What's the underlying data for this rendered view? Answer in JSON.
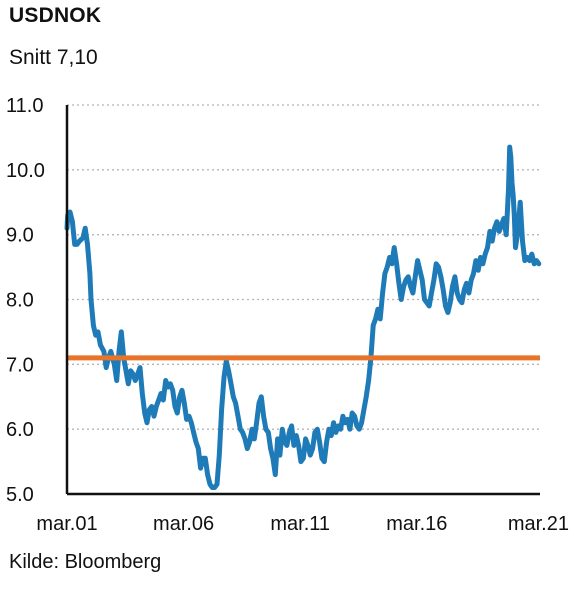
{
  "chart_data": {
    "type": "line",
    "title": "USDNOK",
    "subtitle": "Snitt 7,10",
    "source": "Kilde: Bloomberg",
    "xlabel": "",
    "ylabel": "",
    "x_ticks": [
      "mar.01",
      "mar.06",
      "mar.11",
      "mar.16",
      "mar.21"
    ],
    "x_tick_years": [
      2001.17,
      2006.17,
      2011.17,
      2016.17,
      2021.17
    ],
    "xlim": [
      2001.17,
      2021.45
    ],
    "y_ticks": [
      "5.0",
      "6.0",
      "7.0",
      "8.0",
      "9.0",
      "10.0",
      "11.0"
    ],
    "y_tick_values": [
      5,
      6,
      7,
      8,
      9,
      10,
      11
    ],
    "ylim": [
      5,
      11
    ],
    "grid": "horizontal dotted",
    "colors": {
      "series": "#1f7bb8",
      "average": "#e8742a",
      "grid": "#b5b5b5",
      "axis": "#111111"
    },
    "average": 7.1,
    "series": [
      {
        "x": [
          2001.17,
          2001.2,
          2001.3,
          2001.4,
          2001.5,
          2001.6,
          2001.7,
          2001.85,
          2001.95,
          2002.05,
          2002.15,
          2002.2,
          2002.3,
          2002.4,
          2002.5,
          2002.6,
          2002.75,
          2002.85,
          2002.95,
          2003.05,
          2003.2,
          2003.3,
          2003.4,
          2003.5,
          2003.6,
          2003.7,
          2003.8,
          2003.9,
          2004.0,
          2004.1,
          2004.2,
          2004.3,
          2004.4,
          2004.5,
          2004.6,
          2004.7,
          2004.8,
          2004.9,
          2005.0,
          2005.1,
          2005.2,
          2005.3,
          2005.4,
          2005.5,
          2005.6,
          2005.7,
          2005.8,
          2005.9,
          2006.0,
          2006.1,
          2006.2,
          2006.3,
          2006.4,
          2006.5,
          2006.6,
          2006.7,
          2006.8,
          2006.9,
          2007.0,
          2007.1,
          2007.2,
          2007.3,
          2007.4,
          2007.5,
          2007.6,
          2007.7,
          2007.8,
          2007.9,
          2008.0,
          2008.1,
          2008.2,
          2008.3,
          2008.4,
          2008.5,
          2008.6,
          2008.7,
          2008.8,
          2008.9,
          2009.0,
          2009.1,
          2009.2,
          2009.3,
          2009.4,
          2009.5,
          2009.6,
          2009.7,
          2009.8,
          2009.9,
          2010.0,
          2010.1,
          2010.2,
          2010.3,
          2010.4,
          2010.5,
          2010.6,
          2010.7,
          2010.8,
          2010.9,
          2011.0,
          2011.1,
          2011.2,
          2011.3,
          2011.4,
          2011.5,
          2011.6,
          2011.7,
          2011.8,
          2011.9,
          2012.0,
          2012.1,
          2012.2,
          2012.3,
          2012.4,
          2012.5,
          2012.6,
          2012.7,
          2012.8,
          2012.9,
          2013.0,
          2013.1,
          2013.2,
          2013.3,
          2013.4,
          2013.5,
          2013.6,
          2013.7,
          2013.8,
          2013.9,
          2014.0,
          2014.1,
          2014.2,
          2014.3,
          2014.4,
          2014.5,
          2014.6,
          2014.7,
          2014.8,
          2014.9,
          2015.0,
          2015.1,
          2015.2,
          2015.3,
          2015.4,
          2015.5,
          2015.6,
          2015.7,
          2015.8,
          2015.9,
          2016.0,
          2016.1,
          2016.2,
          2016.3,
          2016.4,
          2016.5,
          2016.6,
          2016.7,
          2016.8,
          2016.9,
          2017.0,
          2017.1,
          2017.2,
          2017.3,
          2017.4,
          2017.5,
          2017.6,
          2017.7,
          2017.8,
          2017.9,
          2018.0,
          2018.1,
          2018.2,
          2018.3,
          2018.4,
          2018.5,
          2018.6,
          2018.7,
          2018.8,
          2018.9,
          2019.0,
          2019.1,
          2019.2,
          2019.3,
          2019.4,
          2019.5,
          2019.6,
          2019.7,
          2019.8,
          2019.9,
          2020.0,
          2020.1,
          2020.15,
          2020.2,
          2020.25,
          2020.3,
          2020.35,
          2020.4,
          2020.5,
          2020.6,
          2020.7,
          2020.8,
          2020.9,
          2021.0,
          2021.1,
          2021.2,
          2021.3,
          2021.4
        ],
        "values": [
          9.1,
          9.3,
          9.35,
          9.2,
          8.85,
          8.85,
          8.9,
          8.95,
          9.1,
          8.85,
          8.4,
          8.0,
          7.6,
          7.45,
          7.5,
          7.3,
          7.2,
          6.95,
          7.1,
          7.2,
          7.0,
          6.75,
          7.2,
          7.5,
          7.1,
          6.9,
          6.7,
          6.9,
          6.85,
          6.75,
          6.85,
          6.95,
          6.55,
          6.25,
          6.1,
          6.3,
          6.35,
          6.2,
          6.35,
          6.45,
          6.55,
          6.45,
          6.75,
          6.65,
          6.7,
          6.6,
          6.35,
          6.25,
          6.5,
          6.6,
          6.4,
          6.15,
          6.2,
          6.1,
          5.95,
          5.8,
          5.7,
          5.4,
          5.55,
          5.55,
          5.3,
          5.15,
          5.1,
          5.1,
          5.15,
          5.6,
          6.3,
          6.8,
          7.05,
          6.9,
          6.7,
          6.5,
          6.4,
          6.2,
          6.0,
          5.95,
          5.85,
          5.7,
          5.8,
          6.0,
          5.85,
          6.1,
          6.4,
          6.5,
          6.2,
          6.0,
          5.95,
          5.7,
          5.55,
          5.3,
          5.85,
          5.6,
          6.0,
          5.8,
          5.75,
          5.95,
          6.05,
          5.75,
          5.9,
          5.75,
          5.5,
          5.55,
          5.85,
          5.75,
          5.6,
          5.7,
          5.95,
          6.0,
          5.8,
          5.55,
          5.5,
          5.8,
          6.0,
          5.9,
          6.1,
          5.95,
          6.05,
          6.0,
          6.2,
          6.1,
          6.15,
          6.0,
          6.25,
          6.2,
          6.05,
          6.0,
          6.1,
          6.3,
          6.5,
          6.75,
          7.1,
          7.6,
          7.7,
          7.85,
          7.7,
          8.1,
          8.4,
          8.5,
          8.65,
          8.55,
          8.8,
          8.55,
          8.25,
          8.0,
          8.2,
          8.3,
          8.35,
          8.2,
          8.1,
          8.35,
          8.6,
          8.45,
          8.3,
          8.0,
          7.95,
          7.9,
          8.1,
          8.3,
          8.55,
          8.5,
          8.35,
          8.15,
          7.9,
          7.8,
          7.95,
          8.2,
          8.35,
          8.1,
          8.0,
          7.95,
          8.15,
          8.25,
          8.1,
          8.3,
          8.4,
          8.6,
          8.45,
          8.65,
          8.55,
          8.7,
          8.8,
          9.05,
          8.9,
          9.1,
          9.2,
          9.05,
          9.15,
          9.25,
          9.0,
          9.7,
          10.35,
          10.2,
          9.8,
          9.6,
          9.3,
          8.8,
          9.05,
          9.5,
          8.9,
          8.6,
          8.65,
          8.6,
          8.7,
          8.55,
          8.6,
          8.55
        ]
      }
    ]
  }
}
